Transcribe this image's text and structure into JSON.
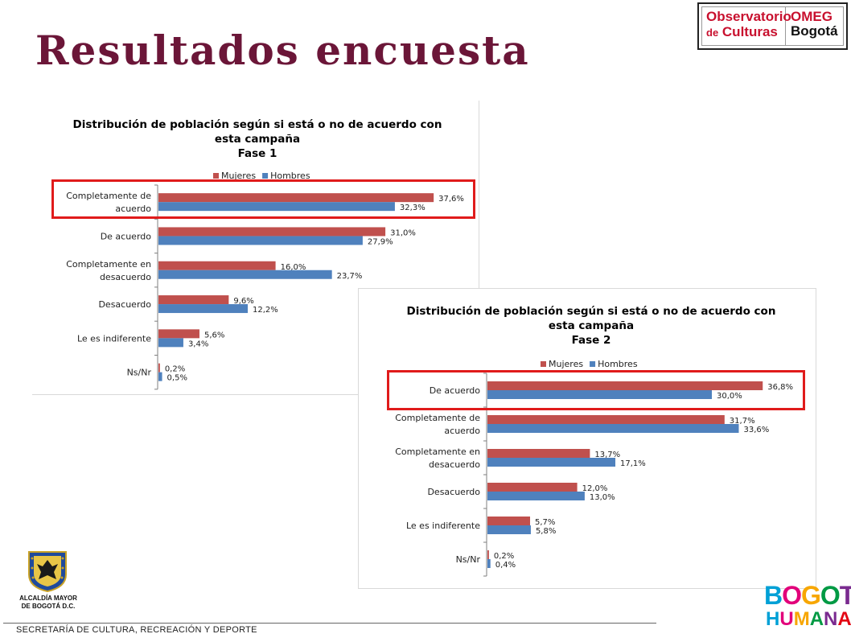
{
  "title": "Resultados encuesta",
  "logo_observatorio": {
    "line1": "Observatorio",
    "line2_de": "de",
    "line2_word": "Culturas",
    "omeg": "OMEG",
    "bogota": "Bogotá",
    "brand_color": "#c8102e"
  },
  "chart_data": [
    {
      "type": "bar",
      "orientation": "horizontal",
      "title": [
        "Distribución de población según si está o no de acuerdo con",
        "esta campaña",
        "Fase 1"
      ],
      "categories": [
        [
          "Completamente de",
          "acuerdo"
        ],
        [
          "De acuerdo"
        ],
        [
          "Completamente en",
          "desacuerdo"
        ],
        [
          "Desacuerdo"
        ],
        [
          "Le es indiferente"
        ],
        [
          "Ns/Nr"
        ]
      ],
      "series": [
        {
          "name": "Mujeres",
          "color": "#c0504d",
          "values": [
            37.6,
            31.0,
            16.0,
            9.6,
            5.6,
            0.2
          ],
          "labels": [
            "37,6%",
            "31,0%",
            "16,0%",
            "9,6%",
            "5,6%",
            "0,2%"
          ]
        },
        {
          "name": "Hombres",
          "color": "#4f81bd",
          "values": [
            32.3,
            27.9,
            23.7,
            12.2,
            3.4,
            0.5
          ],
          "labels": [
            "32,3%",
            "27,9%",
            "23,7%",
            "12,2%",
            "3,4%",
            "0,5%"
          ]
        }
      ],
      "legend_position": "top",
      "grid": false,
      "xlim": [
        0,
        40
      ],
      "highlight_category": 0
    },
    {
      "type": "bar",
      "orientation": "horizontal",
      "title": [
        "Distribución de población según si está o no de acuerdo con",
        "esta campaña",
        "Fase 2"
      ],
      "categories": [
        [
          "De acuerdo"
        ],
        [
          "Completamente de",
          "acuerdo"
        ],
        [
          "Completamente en",
          "desacuerdo"
        ],
        [
          "Desacuerdo"
        ],
        [
          "Le es indiferente"
        ],
        [
          "Ns/Nr"
        ]
      ],
      "series": [
        {
          "name": "Mujeres",
          "color": "#c0504d",
          "values": [
            36.8,
            31.7,
            13.7,
            12.0,
            5.7,
            0.2
          ],
          "labels": [
            "36,8%",
            "31,7%",
            "13,7%",
            "12,0%",
            "5,7%",
            "0,2%"
          ]
        },
        {
          "name": "Hombres",
          "color": "#4f81bd",
          "values": [
            30.0,
            33.6,
            17.1,
            13.0,
            5.8,
            0.4
          ],
          "labels": [
            "30,0%",
            "33,6%",
            "17,1%",
            "13,0%",
            "5,8%",
            "0,4%"
          ]
        }
      ],
      "legend_position": "top",
      "grid": false,
      "xlim": [
        0,
        40
      ],
      "highlight_category": 0
    }
  ],
  "alcaldia": {
    "line1": "ALCALDÍA MAYOR",
    "line2": "DE BOGOTÁ D.C."
  },
  "footer": "SECRETARÍA DE CULTURA, RECREACIÓN Y DEPORTE",
  "bogota_humana": {
    "line1": "BOGOTÁ",
    "line2": "HUMANA"
  },
  "colors": {
    "title": "#6b1638",
    "highlight": "#e01b1b"
  }
}
